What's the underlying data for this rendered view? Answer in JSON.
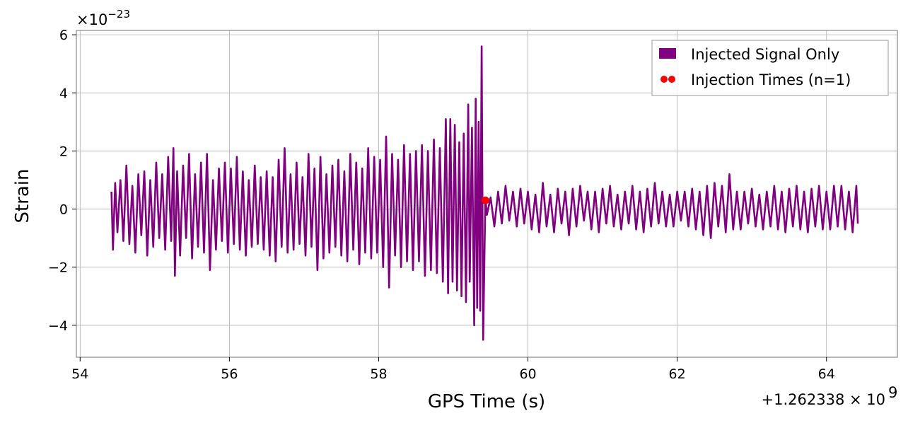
{
  "chart_data": {
    "type": "line",
    "xlabel": "GPS Time (s)",
    "ylabel": "Strain",
    "x_offset_text": "+1.262338 × 10",
    "x_offset_exp": "9",
    "y_scale_text": "×10",
    "y_scale_exp": "−23",
    "xlim": [
      53.95,
      64.95
    ],
    "ylim": [
      -5.1,
      6.15
    ],
    "x_ticks": [
      54,
      56,
      58,
      60,
      62,
      64
    ],
    "x_tick_labels": [
      "54",
      "56",
      "58",
      "60",
      "62",
      "64"
    ],
    "y_ticks": [
      -4,
      -2,
      0,
      2,
      4,
      6
    ],
    "y_tick_labels": [
      "−4",
      "−2",
      "0",
      "2",
      "4",
      "6"
    ],
    "grid": true,
    "legend_position": "top-right",
    "series": [
      {
        "name": "Injected Signal Only",
        "kind": "line",
        "color": "#800080",
        "t_start": 54.42,
        "t_end": 64.42,
        "points": [
          [
            54.42,
            0.6
          ],
          [
            54.44,
            -1.4
          ],
          [
            54.47,
            0.9
          ],
          [
            54.5,
            -0.8
          ],
          [
            54.54,
            1.0
          ],
          [
            54.58,
            -1.1
          ],
          [
            54.62,
            1.5
          ],
          [
            54.66,
            -1.2
          ],
          [
            54.7,
            0.8
          ],
          [
            54.74,
            -1.5
          ],
          [
            54.78,
            1.2
          ],
          [
            54.82,
            -0.9
          ],
          [
            54.86,
            1.3
          ],
          [
            54.9,
            -1.6
          ],
          [
            54.94,
            1.0
          ],
          [
            54.98,
            -1.3
          ],
          [
            55.02,
            1.6
          ],
          [
            55.06,
            -1.0
          ],
          [
            55.1,
            1.2
          ],
          [
            55.14,
            -1.4
          ],
          [
            55.18,
            1.8
          ],
          [
            55.22,
            -1.1
          ],
          [
            55.25,
            2.1
          ],
          [
            55.27,
            -2.3
          ],
          [
            55.3,
            1.3
          ],
          [
            55.34,
            -1.6
          ],
          [
            55.38,
            1.5
          ],
          [
            55.42,
            -1.0
          ],
          [
            55.46,
            1.9
          ],
          [
            55.5,
            -1.7
          ],
          [
            55.54,
            1.2
          ],
          [
            55.58,
            -1.3
          ],
          [
            55.62,
            1.6
          ],
          [
            55.66,
            -1.5
          ],
          [
            55.7,
            1.9
          ],
          [
            55.74,
            -2.1
          ],
          [
            55.78,
            1.0
          ],
          [
            55.82,
            -1.4
          ],
          [
            55.86,
            1.4
          ],
          [
            55.9,
            -1.1
          ],
          [
            55.94,
            1.6
          ],
          [
            55.98,
            -1.5
          ],
          [
            56.02,
            1.4
          ],
          [
            56.06,
            -1.2
          ],
          [
            56.1,
            1.8
          ],
          [
            56.14,
            -1.4
          ],
          [
            56.18,
            1.3
          ],
          [
            56.22,
            -1.6
          ],
          [
            56.26,
            1.0
          ],
          [
            56.3,
            -1.3
          ],
          [
            56.34,
            1.5
          ],
          [
            56.38,
            -1.2
          ],
          [
            56.42,
            1.1
          ],
          [
            56.46,
            -1.4
          ],
          [
            56.5,
            1.3
          ],
          [
            56.54,
            -1.6
          ],
          [
            56.58,
            1.1
          ],
          [
            56.62,
            -1.8
          ],
          [
            56.66,
            1.7
          ],
          [
            56.7,
            -1.3
          ],
          [
            56.74,
            2.1
          ],
          [
            56.78,
            -1.5
          ],
          [
            56.82,
            1.2
          ],
          [
            56.86,
            -1.4
          ],
          [
            56.9,
            1.6
          ],
          [
            56.94,
            -1.2
          ],
          [
            56.98,
            1.1
          ],
          [
            57.02,
            -1.6
          ],
          [
            57.06,
            1.9
          ],
          [
            57.1,
            -1.3
          ],
          [
            57.14,
            1.4
          ],
          [
            57.18,
            -2.1
          ],
          [
            57.22,
            1.8
          ],
          [
            57.26,
            -1.7
          ],
          [
            57.3,
            1.2
          ],
          [
            57.34,
            -1.5
          ],
          [
            57.38,
            1.5
          ],
          [
            57.42,
            -1.3
          ],
          [
            57.46,
            1.7
          ],
          [
            57.5,
            -1.6
          ],
          [
            57.54,
            1.3
          ],
          [
            57.58,
            -1.8
          ],
          [
            57.62,
            1.9
          ],
          [
            57.66,
            -1.4
          ],
          [
            57.7,
            1.6
          ],
          [
            57.74,
            -1.9
          ],
          [
            57.78,
            1.4
          ],
          [
            57.82,
            -1.5
          ],
          [
            57.86,
            2.1
          ],
          [
            57.9,
            -1.7
          ],
          [
            57.94,
            1.8
          ],
          [
            57.98,
            -1.5
          ],
          [
            58.02,
            1.7
          ],
          [
            58.06,
            -2.0
          ],
          [
            58.1,
            2.5
          ],
          [
            58.14,
            -2.7
          ],
          [
            58.18,
            1.9
          ],
          [
            58.22,
            -1.6
          ],
          [
            58.26,
            1.7
          ],
          [
            58.3,
            -2.0
          ],
          [
            58.34,
            2.2
          ],
          [
            58.38,
            -1.8
          ],
          [
            58.42,
            1.9
          ],
          [
            58.46,
            -2.1
          ],
          [
            58.5,
            2.0
          ],
          [
            58.54,
            -1.8
          ],
          [
            58.58,
            2.2
          ],
          [
            58.62,
            -2.3
          ],
          [
            58.66,
            2.0
          ],
          [
            58.7,
            -2.1
          ],
          [
            58.74,
            2.4
          ],
          [
            58.78,
            -2.2
          ],
          [
            58.82,
            2.1
          ],
          [
            58.86,
            -2.5
          ],
          [
            58.9,
            3.1
          ],
          [
            58.93,
            -2.9
          ],
          [
            58.96,
            3.1
          ],
          [
            58.99,
            -2.5
          ],
          [
            59.02,
            2.9
          ],
          [
            59.05,
            -2.8
          ],
          [
            59.08,
            2.3
          ],
          [
            59.11,
            -3.0
          ],
          [
            59.14,
            2.6
          ],
          [
            59.17,
            -3.2
          ],
          [
            59.2,
            3.6
          ],
          [
            59.22,
            -2.5
          ],
          [
            59.25,
            2.8
          ],
          [
            59.28,
            -4.0
          ],
          [
            59.3,
            3.8
          ],
          [
            59.32,
            -3.4
          ],
          [
            59.34,
            3.0
          ],
          [
            59.36,
            -3.5
          ],
          [
            59.38,
            5.6
          ],
          [
            59.4,
            -4.5
          ],
          [
            59.43,
            0.4
          ],
          [
            59.45,
            -0.2
          ],
          [
            59.5,
            0.4
          ],
          [
            59.55,
            -0.6
          ],
          [
            59.6,
            0.6
          ],
          [
            59.65,
            -0.5
          ],
          [
            59.7,
            0.8
          ],
          [
            59.75,
            -0.4
          ],
          [
            59.8,
            0.6
          ],
          [
            59.85,
            -0.6
          ],
          [
            59.9,
            0.7
          ],
          [
            59.95,
            -0.5
          ],
          [
            60.0,
            0.6
          ],
          [
            60.05,
            -0.7
          ],
          [
            60.1,
            0.5
          ],
          [
            60.15,
            -0.8
          ],
          [
            60.2,
            0.9
          ],
          [
            60.25,
            -0.6
          ],
          [
            60.3,
            0.5
          ],
          [
            60.35,
            -0.8
          ],
          [
            60.4,
            0.7
          ],
          [
            60.45,
            -0.5
          ],
          [
            60.5,
            0.6
          ],
          [
            60.55,
            -0.9
          ],
          [
            60.6,
            0.7
          ],
          [
            60.65,
            -0.6
          ],
          [
            60.7,
            0.8
          ],
          [
            60.75,
            -0.4
          ],
          [
            60.8,
            0.6
          ],
          [
            60.85,
            -0.7
          ],
          [
            60.9,
            0.6
          ],
          [
            60.95,
            -0.8
          ],
          [
            61.0,
            0.7
          ],
          [
            61.05,
            -0.5
          ],
          [
            61.1,
            0.8
          ],
          [
            61.15,
            -0.6
          ],
          [
            61.2,
            0.5
          ],
          [
            61.25,
            -0.7
          ],
          [
            61.3,
            0.6
          ],
          [
            61.35,
            -0.5
          ],
          [
            61.4,
            0.8
          ],
          [
            61.45,
            -0.7
          ],
          [
            61.5,
            0.6
          ],
          [
            61.55,
            -0.8
          ],
          [
            61.6,
            0.7
          ],
          [
            61.65,
            -0.6
          ],
          [
            61.7,
            0.9
          ],
          [
            61.75,
            -0.5
          ],
          [
            61.8,
            0.6
          ],
          [
            61.85,
            -0.6
          ],
          [
            61.9,
            0.5
          ],
          [
            61.95,
            -0.6
          ],
          [
            62.0,
            0.6
          ],
          [
            62.05,
            -0.4
          ],
          [
            62.1,
            0.6
          ],
          [
            62.15,
            -0.6
          ],
          [
            62.2,
            0.7
          ],
          [
            62.25,
            -0.7
          ],
          [
            62.3,
            0.6
          ],
          [
            62.35,
            -0.9
          ],
          [
            62.4,
            0.8
          ],
          [
            62.45,
            -1.0
          ],
          [
            62.5,
            0.9
          ],
          [
            62.55,
            -0.6
          ],
          [
            62.6,
            0.8
          ],
          [
            62.65,
            -0.8
          ],
          [
            62.7,
            1.2
          ],
          [
            62.75,
            -0.7
          ],
          [
            62.8,
            0.6
          ],
          [
            62.85,
            -0.7
          ],
          [
            62.9,
            0.6
          ],
          [
            62.95,
            -0.5
          ],
          [
            63.0,
            0.7
          ],
          [
            63.05,
            -0.6
          ],
          [
            63.1,
            0.5
          ],
          [
            63.15,
            -0.7
          ],
          [
            63.2,
            0.6
          ],
          [
            63.25,
            -0.6
          ],
          [
            63.3,
            0.8
          ],
          [
            63.35,
            -0.7
          ],
          [
            63.4,
            0.6
          ],
          [
            63.45,
            -0.8
          ],
          [
            63.5,
            0.7
          ],
          [
            63.55,
            -0.6
          ],
          [
            63.6,
            0.8
          ],
          [
            63.65,
            -0.7
          ],
          [
            63.7,
            0.6
          ],
          [
            63.75,
            -0.8
          ],
          [
            63.8,
            0.7
          ],
          [
            63.85,
            -0.6
          ],
          [
            63.9,
            0.8
          ],
          [
            63.95,
            -0.7
          ],
          [
            64.0,
            0.6
          ],
          [
            64.05,
            -0.7
          ],
          [
            64.1,
            0.8
          ],
          [
            64.15,
            -0.6
          ],
          [
            64.2,
            0.8
          ],
          [
            64.25,
            -0.7
          ],
          [
            64.3,
            0.6
          ],
          [
            64.35,
            -0.8
          ],
          [
            64.4,
            0.8
          ],
          [
            64.42,
            -0.5
          ]
        ]
      },
      {
        "name": "Injection Times (n=1)",
        "kind": "scatter",
        "color": "#ff0000",
        "points": [
          [
            59.43,
            0.3
          ]
        ]
      }
    ]
  }
}
